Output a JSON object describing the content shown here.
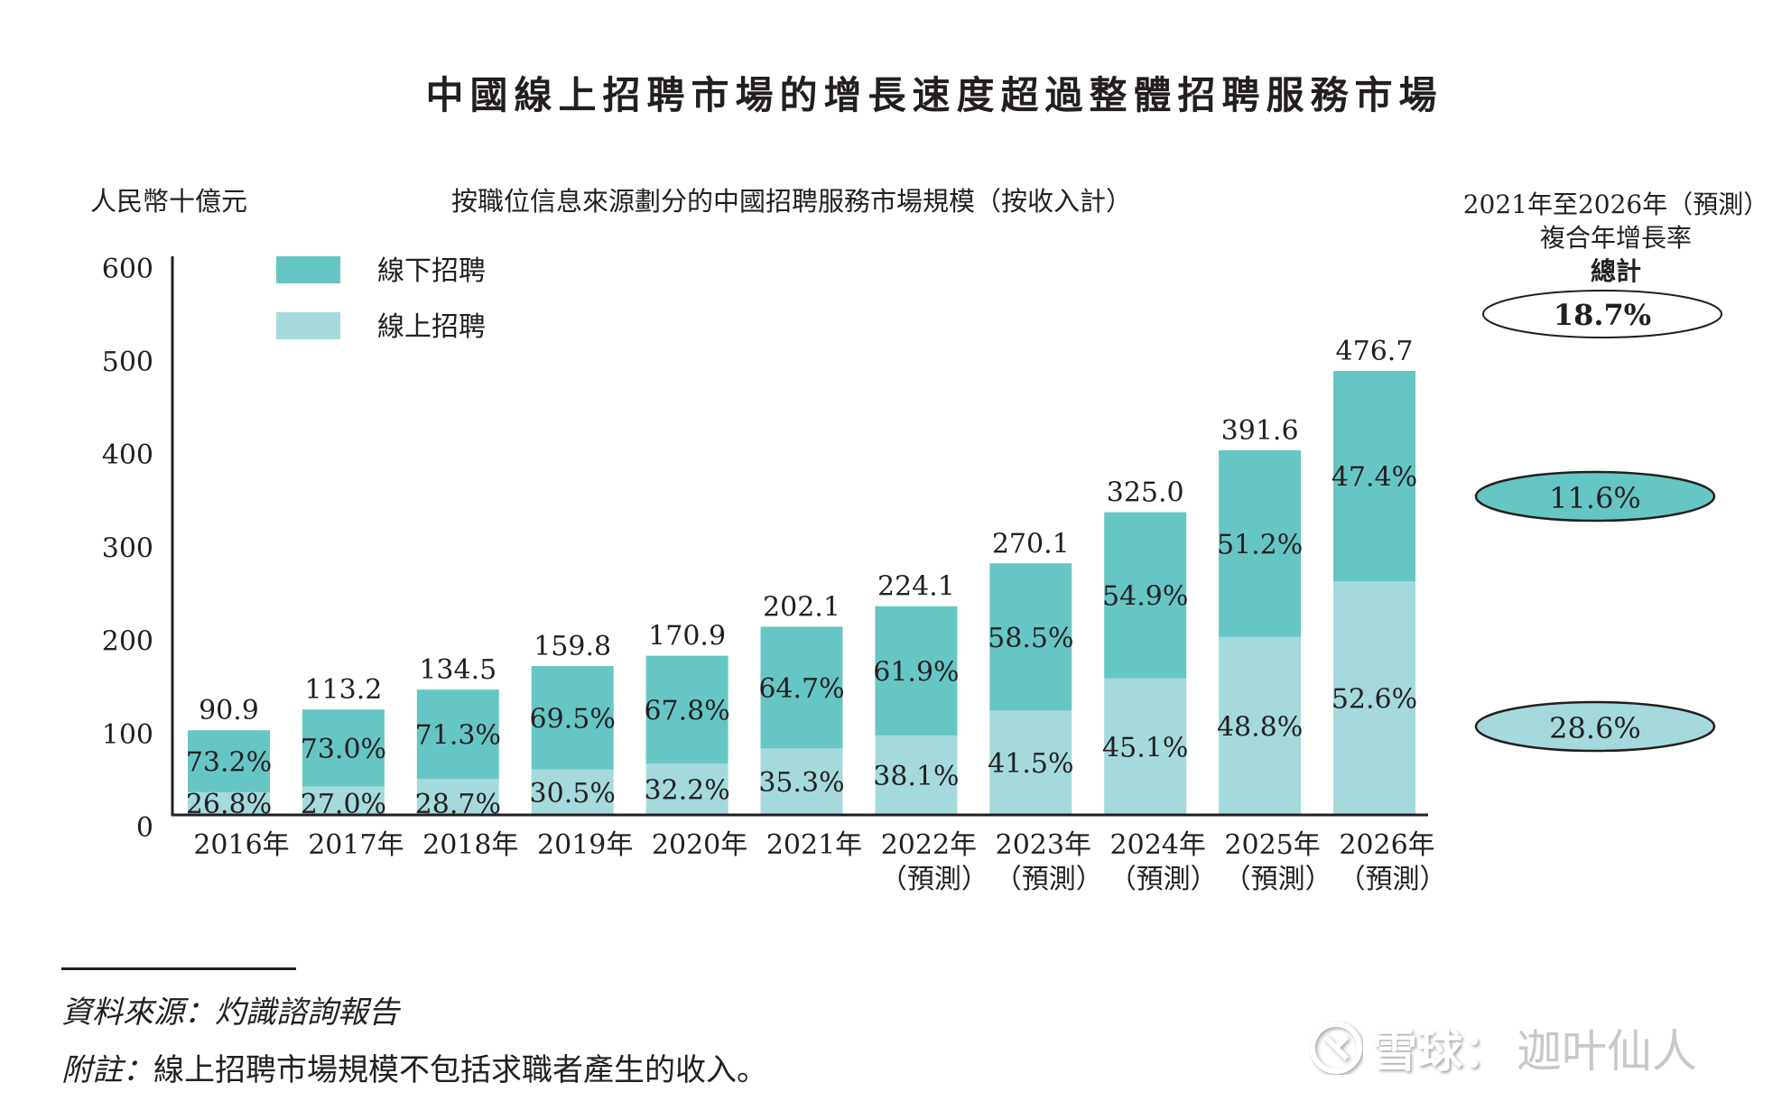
{
  "title": "中國線上招聘市場的增長速度超過整體招聘服務市場",
  "unit_label": "人民幣十億元",
  "subtitle": "按職位信息來源劃分的中國招聘服務市場規模（按收入計）",
  "cagr_header": {
    "line1": "2021年至2026年（預測）",
    "line2": "複合年增長率",
    "line3": "總計"
  },
  "cagr": {
    "total": "18.7%",
    "offline": "11.6%",
    "online": "28.6%"
  },
  "colors": {
    "offline": "#66c6c3",
    "online": "#a4dadc",
    "text": "#231f20",
    "axis": "#231f20"
  },
  "chart_data": {
    "type": "bar",
    "stacked": true,
    "title": "按職位信息來源劃分的中國招聘服務市場規模（按收入計）",
    "ylabel": "人民幣十億元",
    "xlabel": "",
    "ylim": [
      0,
      600
    ],
    "yticks": [
      0,
      100,
      200,
      300,
      400,
      500,
      600
    ],
    "grid": false,
    "legend_position": "top-left",
    "categories": [
      "2016年",
      "2017年",
      "2018年",
      "2019年",
      "2020年",
      "2021年",
      "2022年",
      "2023年",
      "2024年",
      "2025年",
      "2026年"
    ],
    "category_sublabels": [
      "",
      "",
      "",
      "",
      "",
      "",
      "（預測）",
      "（預測）",
      "（預測）",
      "（預測）",
      "（預測）"
    ],
    "totals": [
      90.9,
      113.2,
      134.5,
      159.8,
      170.9,
      202.1,
      224.1,
      270.1,
      325.0,
      391.6,
      476.7
    ],
    "total_labels": [
      "90.9",
      "113.2",
      "134.5",
      "159.8",
      "170.9",
      "202.1",
      "224.1",
      "270.1",
      "325.0",
      "391.6",
      "476.7"
    ],
    "series": [
      {
        "name": "線上招聘",
        "key": "online",
        "share_pct": [
          26.8,
          27.0,
          28.7,
          30.5,
          32.2,
          35.3,
          38.1,
          41.5,
          45.1,
          48.8,
          52.6
        ],
        "share_labels": [
          "26.8%",
          "27.0%",
          "28.7%",
          "30.5%",
          "32.2%",
          "35.3%",
          "38.1%",
          "41.5%",
          "45.1%",
          "48.8%",
          "52.6%"
        ]
      },
      {
        "name": "線下招聘",
        "key": "offline",
        "share_pct": [
          73.2,
          73.0,
          71.3,
          69.5,
          67.8,
          64.7,
          61.9,
          58.5,
          54.9,
          51.2,
          47.4
        ],
        "share_labels": [
          "73.2%",
          "73.0%",
          "71.3%",
          "69.5%",
          "67.8%",
          "64.7%",
          "61.9%",
          "58.5%",
          "54.9%",
          "51.2%",
          "47.4%"
        ]
      }
    ],
    "legend": [
      {
        "name": "線下招聘",
        "key": "offline"
      },
      {
        "name": "線上招聘",
        "key": "online"
      }
    ]
  },
  "footer": {
    "source": "資料來源：灼識諮詢報告",
    "note_label": "附註：",
    "note_text": "線上招聘市場規模不包括求職者產生的收入。"
  },
  "watermark": {
    "brand": "雪球：",
    "author": "迦叶仙人"
  }
}
